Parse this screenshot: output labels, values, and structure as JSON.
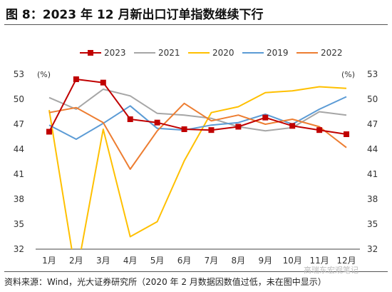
{
  "figure": {
    "title": "图 8：2023 年 12 月新出口订单指数继续下行",
    "source": "资料来源：Wind，光大证券研究所（2020 年 2 月数据因数值过低，未在图中显示）",
    "watermark": "高瑞东宏观笔记"
  },
  "chart_data": {
    "type": "line",
    "categories": [
      "1月",
      "2月",
      "3月",
      "4月",
      "5月",
      "6月",
      "7月",
      "8月",
      "9月",
      "10月",
      "11月",
      "12月"
    ],
    "ylim": [
      32,
      53
    ],
    "yticks": [
      32,
      35,
      38,
      41,
      44,
      47,
      50,
      53
    ],
    "yunit_left": "(%)",
    "yunit_right": "(%)",
    "legend_position": "top",
    "grid": false,
    "series": [
      {
        "name": "2023",
        "color": "#c00000",
        "marker": "square",
        "values": [
          46.1,
          52.4,
          52.0,
          47.6,
          47.2,
          46.4,
          46.3,
          46.7,
          47.8,
          46.8,
          46.3,
          45.8
        ]
      },
      {
        "name": "2021",
        "color": "#a6a6a6",
        "marker": "none",
        "values": [
          50.2,
          48.8,
          51.2,
          50.4,
          48.3,
          48.1,
          47.7,
          46.7,
          46.2,
          46.6,
          48.5,
          48.1
        ]
      },
      {
        "name": "2020",
        "color": "#ffc000",
        "marker": "none",
        "values": [
          48.7,
          28.7,
          46.4,
          33.5,
          35.3,
          42.6,
          48.4,
          49.1,
          50.8,
          51.0,
          51.5,
          51.3
        ]
      },
      {
        "name": "2019",
        "color": "#5b9bd5",
        "marker": "none",
        "values": [
          46.9,
          45.2,
          47.1,
          49.2,
          46.5,
          46.3,
          46.9,
          47.2,
          48.2,
          47.0,
          48.8,
          50.3
        ]
      },
      {
        "name": "2022",
        "color": "#ed7d31",
        "marker": "none",
        "values": [
          48.4,
          49.0,
          47.2,
          41.6,
          46.2,
          49.5,
          47.4,
          48.1,
          47.0,
          47.6,
          46.7,
          44.2
        ]
      }
    ]
  }
}
